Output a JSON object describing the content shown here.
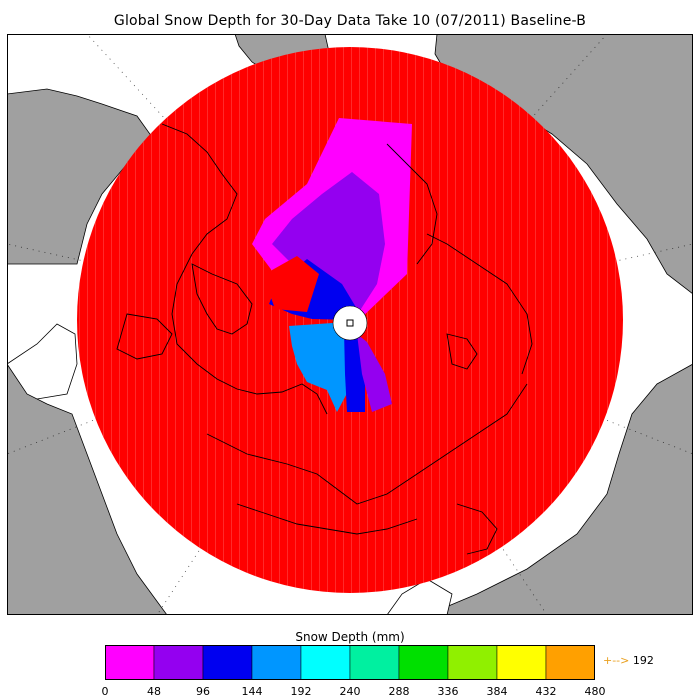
{
  "title": "Global Snow Depth for 30-Day Data Take 10 (07/2011) Baseline-B",
  "map": {
    "projection": "north-polar-stereographic",
    "colors": {
      "ocean": "#ffffff",
      "land": "#a0a0a0",
      "coast": "#000000",
      "data_default": "#ff0000",
      "pole_hole": "#ffffff"
    }
  },
  "legend": {
    "title": "Snow Depth (mm)",
    "ticks": [
      "0",
      "48",
      "96",
      "144",
      "192",
      "240",
      "288",
      "336",
      "384",
      "432",
      "480"
    ],
    "colors": [
      "#ff00ff",
      "#9400f0",
      "#0000f0",
      "#0096ff",
      "#00ffff",
      "#00f0a0",
      "#00e000",
      "#90f000",
      "#ffff00",
      "#ffa000"
    ],
    "overflow_arrow": "+-->",
    "overflow_value": "192"
  }
}
